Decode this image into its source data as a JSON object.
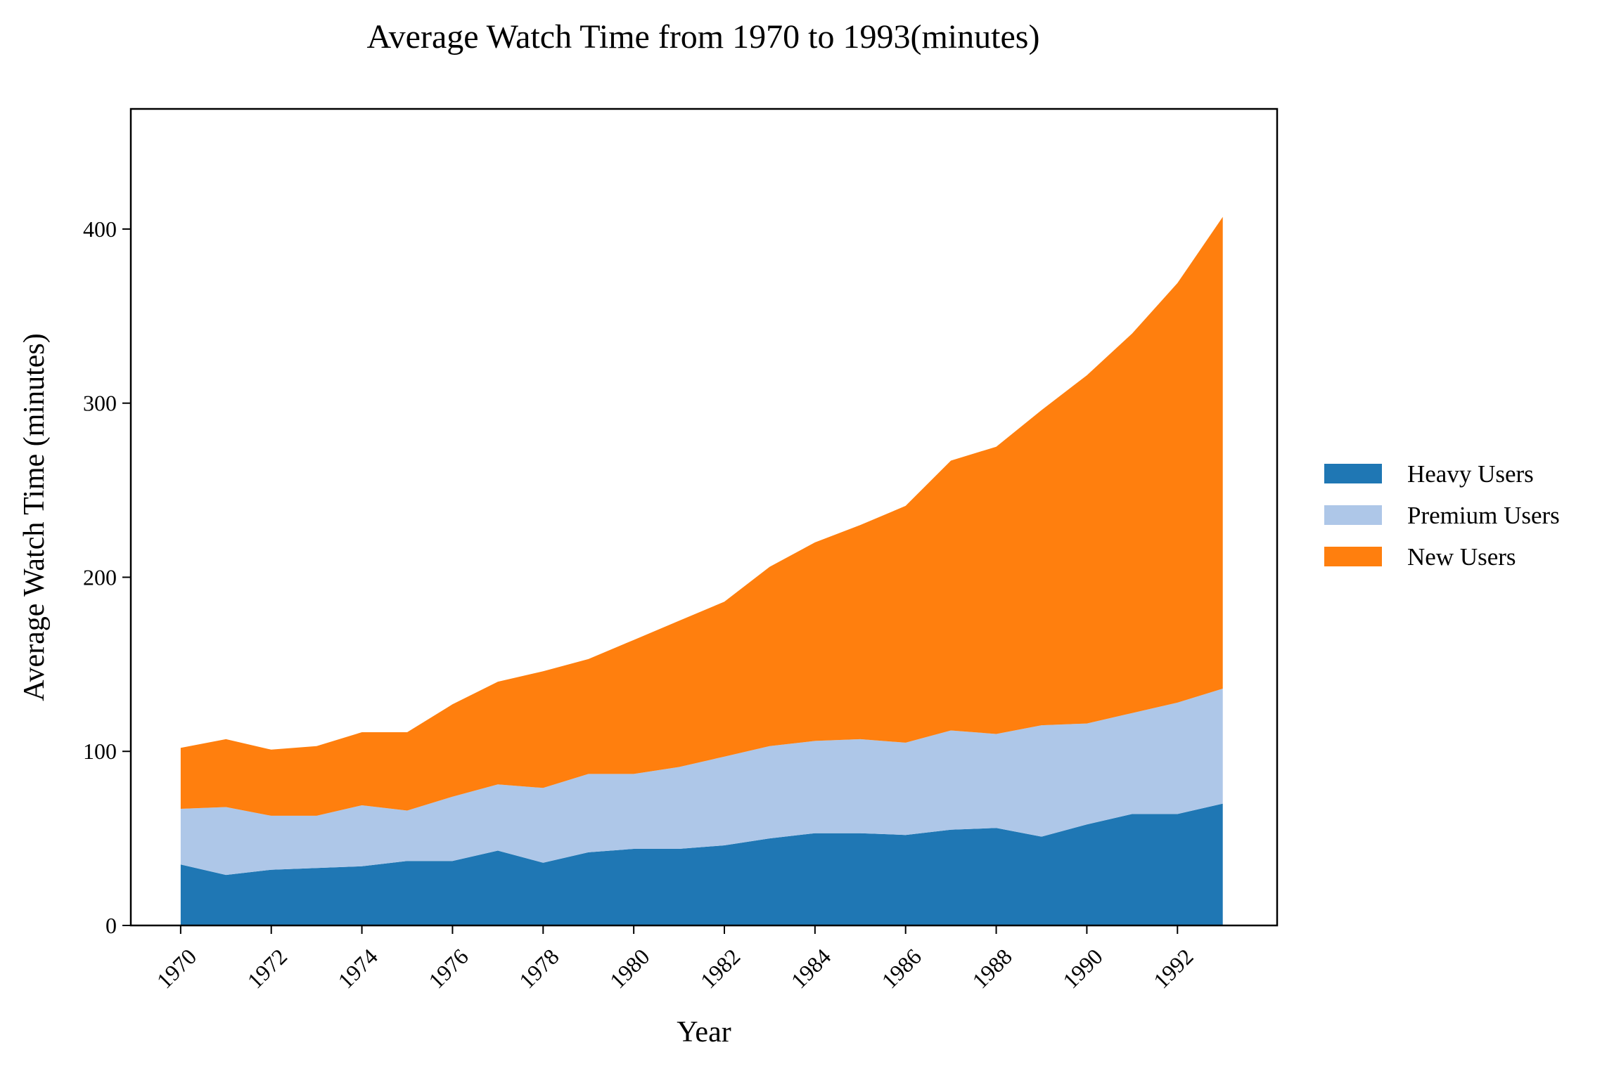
{
  "chart_data": {
    "type": "area",
    "stacked": true,
    "title": "Average Watch Time from 1970 to 1993(minutes)",
    "xlabel": "Year",
    "ylabel": "Average Watch Time (minutes)",
    "x": [
      1970,
      1971,
      1972,
      1973,
      1974,
      1975,
      1976,
      1977,
      1978,
      1979,
      1980,
      1981,
      1982,
      1983,
      1984,
      1985,
      1986,
      1987,
      1988,
      1989,
      1990,
      1991,
      1992,
      1993
    ],
    "xticks": [
      "1970",
      "1972",
      "1974",
      "1976",
      "1978",
      "1980",
      "1982",
      "1984",
      "1986",
      "1988",
      "1990",
      "1992"
    ],
    "yticks": [
      0,
      100,
      200,
      300,
      400
    ],
    "xlim": [
      1968.9,
      1994.2
    ],
    "ylim": [
      0,
      469
    ],
    "grid": false,
    "legend_position": "right",
    "series": [
      {
        "name": "Heavy Users",
        "color": "#1f77b4",
        "values": [
          35,
          29,
          32,
          33,
          34,
          37,
          37,
          43,
          36,
          42,
          44,
          44,
          46,
          50,
          53,
          53,
          52,
          55,
          56,
          51,
          58,
          64,
          64,
          70
        ]
      },
      {
        "name": "Premium Users",
        "color": "#aec7e8",
        "values": [
          32,
          39,
          31,
          30,
          35,
          29,
          37,
          38,
          43,
          45,
          43,
          47,
          51,
          53,
          53,
          54,
          53,
          57,
          54,
          64,
          58,
          58,
          64,
          66
        ]
      },
      {
        "name": "New Users",
        "color": "#ff7f0e",
        "values": [
          35,
          39,
          38,
          40,
          42,
          45,
          53,
          59,
          67,
          66,
          77,
          84,
          89,
          103,
          114,
          123,
          136,
          155,
          165,
          181,
          200,
          218,
          241,
          271
        ]
      }
    ]
  }
}
